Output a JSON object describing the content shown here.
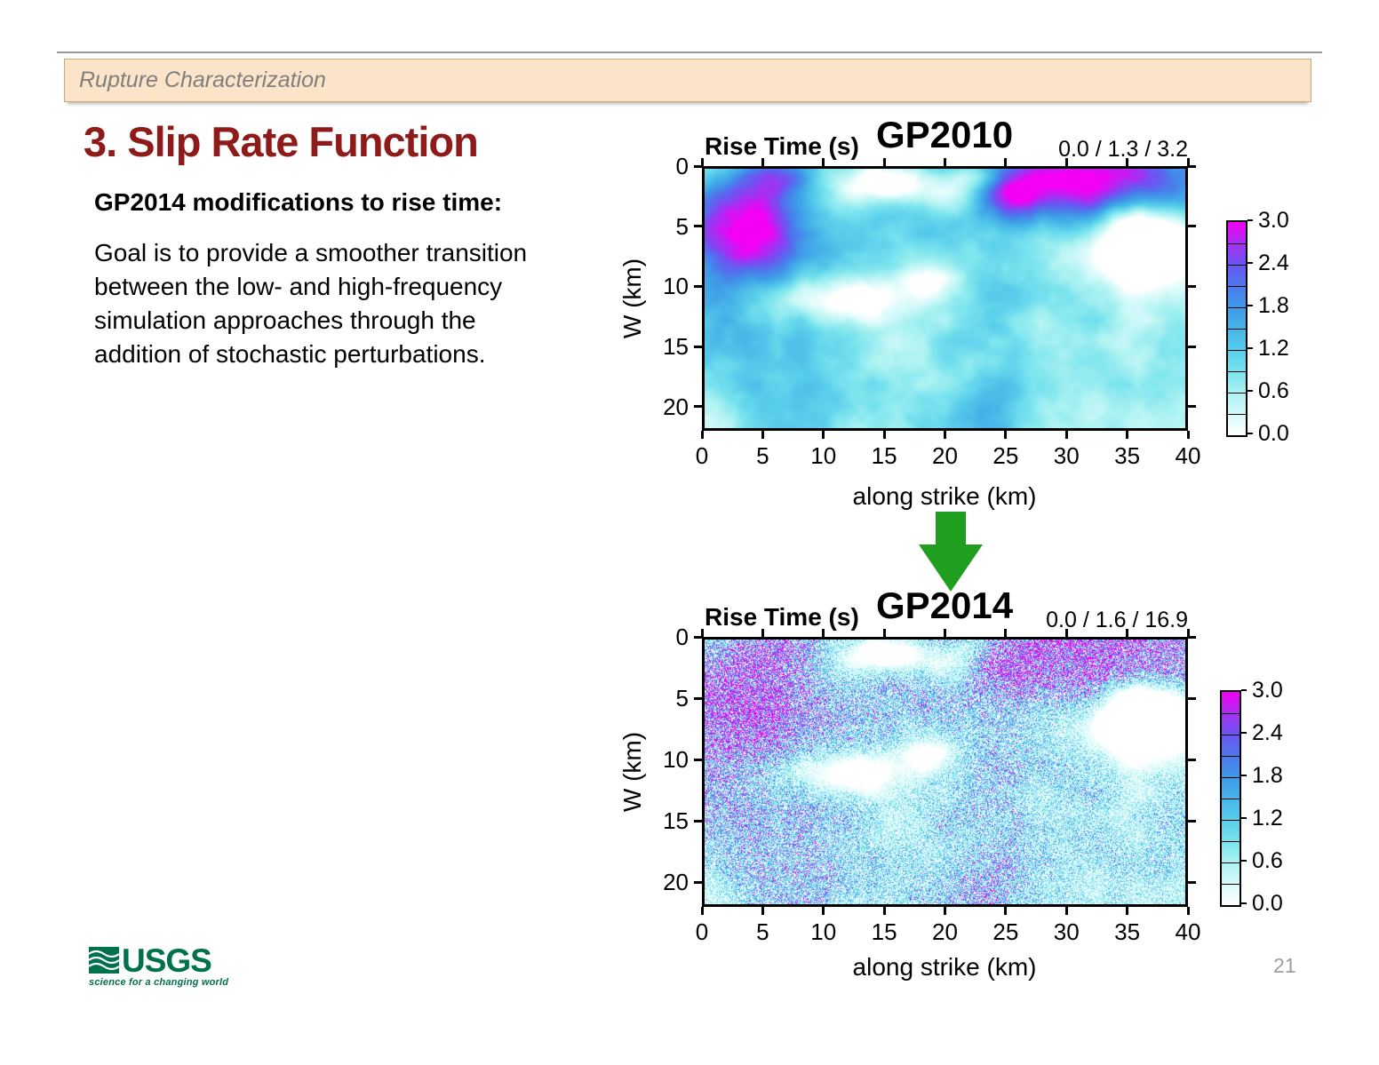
{
  "slide": {
    "banner_text": "Rupture Characterization",
    "title": "3. Slip Rate Function",
    "body_heading": "GP2014 modifications to rise time:",
    "body_paragraph": "Goal is to provide a smoother transition between the low- and high-frequency simulation approaches through the addition of stochastic perturbations.",
    "page_number": "21"
  },
  "logo": {
    "name": "USGS",
    "tagline": "science for a changing world"
  },
  "colors": {
    "banner_bg": "#fce4c9",
    "banner_text": "#7f7f7f",
    "title_red": "#8e1a1a",
    "arrow_green": "#1f9e1f",
    "usgs_green": "#00714d",
    "page_number_gray": "#9e9e9e"
  },
  "charts": [
    {
      "id": "gp2010",
      "corner_label": "Rise Time (s)",
      "title": "GP2010",
      "stats": "0.0 / 1.3 / 3.2",
      "xlabel": "along strike (km)",
      "ylabel": "W (km)",
      "x_ticks": [
        0,
        5,
        10,
        15,
        20,
        25,
        30,
        35,
        40
      ],
      "y_ticks": [
        0,
        5,
        10,
        15,
        20
      ],
      "x_range": [
        0,
        40
      ],
      "y_range": [
        0,
        22
      ],
      "style": "smooth",
      "seed": 7
    },
    {
      "id": "gp2014",
      "corner_label": "Rise Time (s)",
      "title": "GP2014",
      "stats": "0.0 / 1.6 / 16.9",
      "xlabel": "along strike (km)",
      "ylabel": "W (km)",
      "x_ticks": [
        0,
        5,
        10,
        15,
        20,
        25,
        30,
        35,
        40
      ],
      "y_ticks": [
        0,
        5,
        10,
        15,
        20
      ],
      "x_range": [
        0,
        40
      ],
      "y_range": [
        0,
        22
      ],
      "style": "speckled",
      "seed": 7
    }
  ],
  "colorbar": {
    "tick_labels": [
      "3.0",
      "2.4",
      "1.8",
      "1.2",
      "0.6",
      "0.0"
    ],
    "value_range": [
      0.0,
      3.0
    ],
    "colormap_stops": [
      [
        0.0,
        "#ffffff"
      ],
      [
        0.3,
        "#d7fafa"
      ],
      [
        0.6,
        "#aaf2f2"
      ],
      [
        0.9,
        "#79e3ee"
      ],
      [
        1.2,
        "#58cdeb"
      ],
      [
        1.5,
        "#46b4e8"
      ],
      [
        1.8,
        "#4099e8"
      ],
      [
        2.1,
        "#4c79ec"
      ],
      [
        2.4,
        "#6d55f2"
      ],
      [
        2.7,
        "#a72ff2"
      ],
      [
        3.0,
        "#f400f4"
      ]
    ]
  }
}
